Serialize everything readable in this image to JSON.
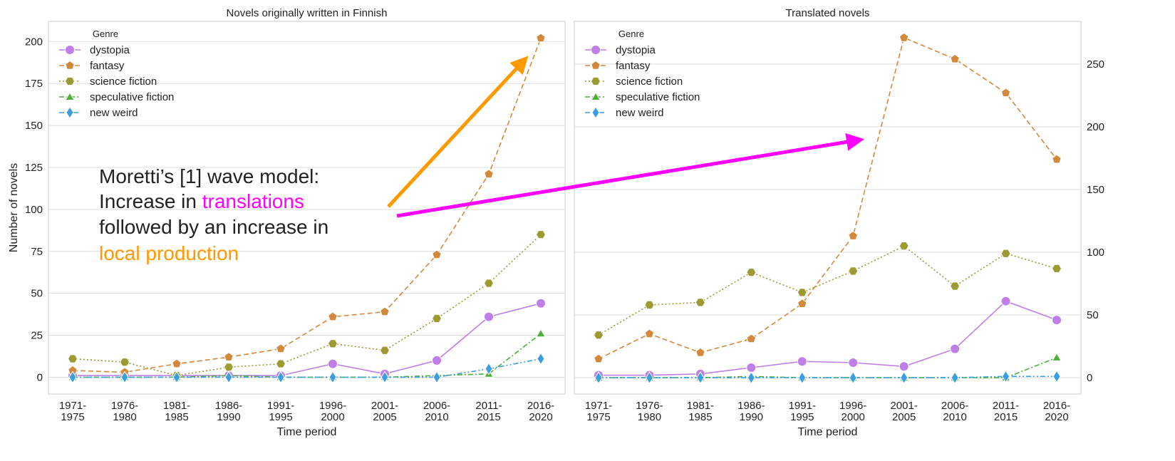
{
  "chart_data": [
    {
      "type": "line",
      "title": "Novels originally written in Finnish",
      "xlabel": "Time period",
      "ylabel": "Number of novels",
      "categories": [
        "1971-1975",
        "1976-1980",
        "1981-1985",
        "1986-1990",
        "1991-1995",
        "1996-2000",
        "2001-2005",
        "2006-2010",
        "2011-2015",
        "2016-2020"
      ],
      "series": [
        {
          "name": "dystopia",
          "color": "#c07ee8",
          "marker": "circle",
          "dash": "solid",
          "values": [
            1,
            1,
            1,
            1,
            1,
            8,
            2,
            10,
            36,
            44
          ]
        },
        {
          "name": "fantasy",
          "color": "#d4883b",
          "marker": "pentagon",
          "dash": "dashed",
          "values": [
            4,
            3,
            8,
            12,
            17,
            36,
            39,
            73,
            121,
            202
          ]
        },
        {
          "name": "science fiction",
          "color": "#9e9a32",
          "marker": "hexagon",
          "dash": "dotted",
          "values": [
            11,
            9,
            1,
            6,
            8,
            20,
            16,
            35,
            56,
            85
          ]
        },
        {
          "name": "speculative fiction",
          "color": "#4caf3a",
          "marker": "triangle",
          "dash": "dashdot",
          "values": [
            0,
            0,
            0,
            1,
            0,
            0,
            0,
            1,
            2,
            26
          ]
        },
        {
          "name": "new weird",
          "color": "#3a9ee0",
          "marker": "diamond",
          "dash": "dashdotdot",
          "values": [
            0,
            0,
            0,
            0,
            0,
            0,
            0,
            0,
            5,
            11
          ]
        }
      ],
      "ylim": [
        -10,
        212
      ],
      "yticks": [
        0,
        25,
        50,
        75,
        100,
        125,
        150,
        175,
        200
      ],
      "yaxis_side": "left",
      "grid": true,
      "legend": {
        "title": "Genre",
        "loc": "upper left"
      }
    },
    {
      "type": "line",
      "title": "Translated novels",
      "xlabel": "Time period",
      "categories": [
        "1971-1975",
        "1976-1980",
        "1981-1985",
        "1986-1990",
        "1991-1995",
        "1996-2000",
        "2001-2005",
        "2006-2010",
        "2011-2015",
        "2016-2020"
      ],
      "series": [
        {
          "name": "dystopia",
          "color": "#c07ee8",
          "marker": "circle",
          "dash": "solid",
          "values": [
            2,
            2,
            3,
            8,
            13,
            12,
            9,
            23,
            61,
            46
          ]
        },
        {
          "name": "fantasy",
          "color": "#d4883b",
          "marker": "pentagon",
          "dash": "dashed",
          "values": [
            15,
            35,
            20,
            31,
            59,
            113,
            271,
            254,
            227,
            174
          ]
        },
        {
          "name": "science fiction",
          "color": "#9e9a32",
          "marker": "hexagon",
          "dash": "dotted",
          "values": [
            34,
            58,
            60,
            84,
            68,
            85,
            105,
            73,
            99,
            87
          ]
        },
        {
          "name": "speculative fiction",
          "color": "#4caf3a",
          "marker": "triangle",
          "dash": "dashdot",
          "values": [
            0,
            0,
            0,
            1,
            0,
            0,
            0,
            0,
            0,
            16
          ]
        },
        {
          "name": "new weird",
          "color": "#3a9ee0",
          "marker": "diamond",
          "dash": "dashdotdot",
          "values": [
            0,
            0,
            0,
            0,
            0,
            0,
            0,
            0,
            1,
            1
          ]
        }
      ],
      "ylim": [
        -13,
        284
      ],
      "yticks": [
        0,
        50,
        100,
        150,
        200,
        250
      ],
      "yaxis_side": "right",
      "grid": true,
      "legend": {
        "title": "Genre",
        "loc": "upper left"
      }
    }
  ],
  "annotation": {
    "line1": "Moretti’s [1] wave model:",
    "line2a": "Increase in ",
    "line2b": "translations",
    "line3": "followed by an increase in",
    "line4": "local production"
  }
}
